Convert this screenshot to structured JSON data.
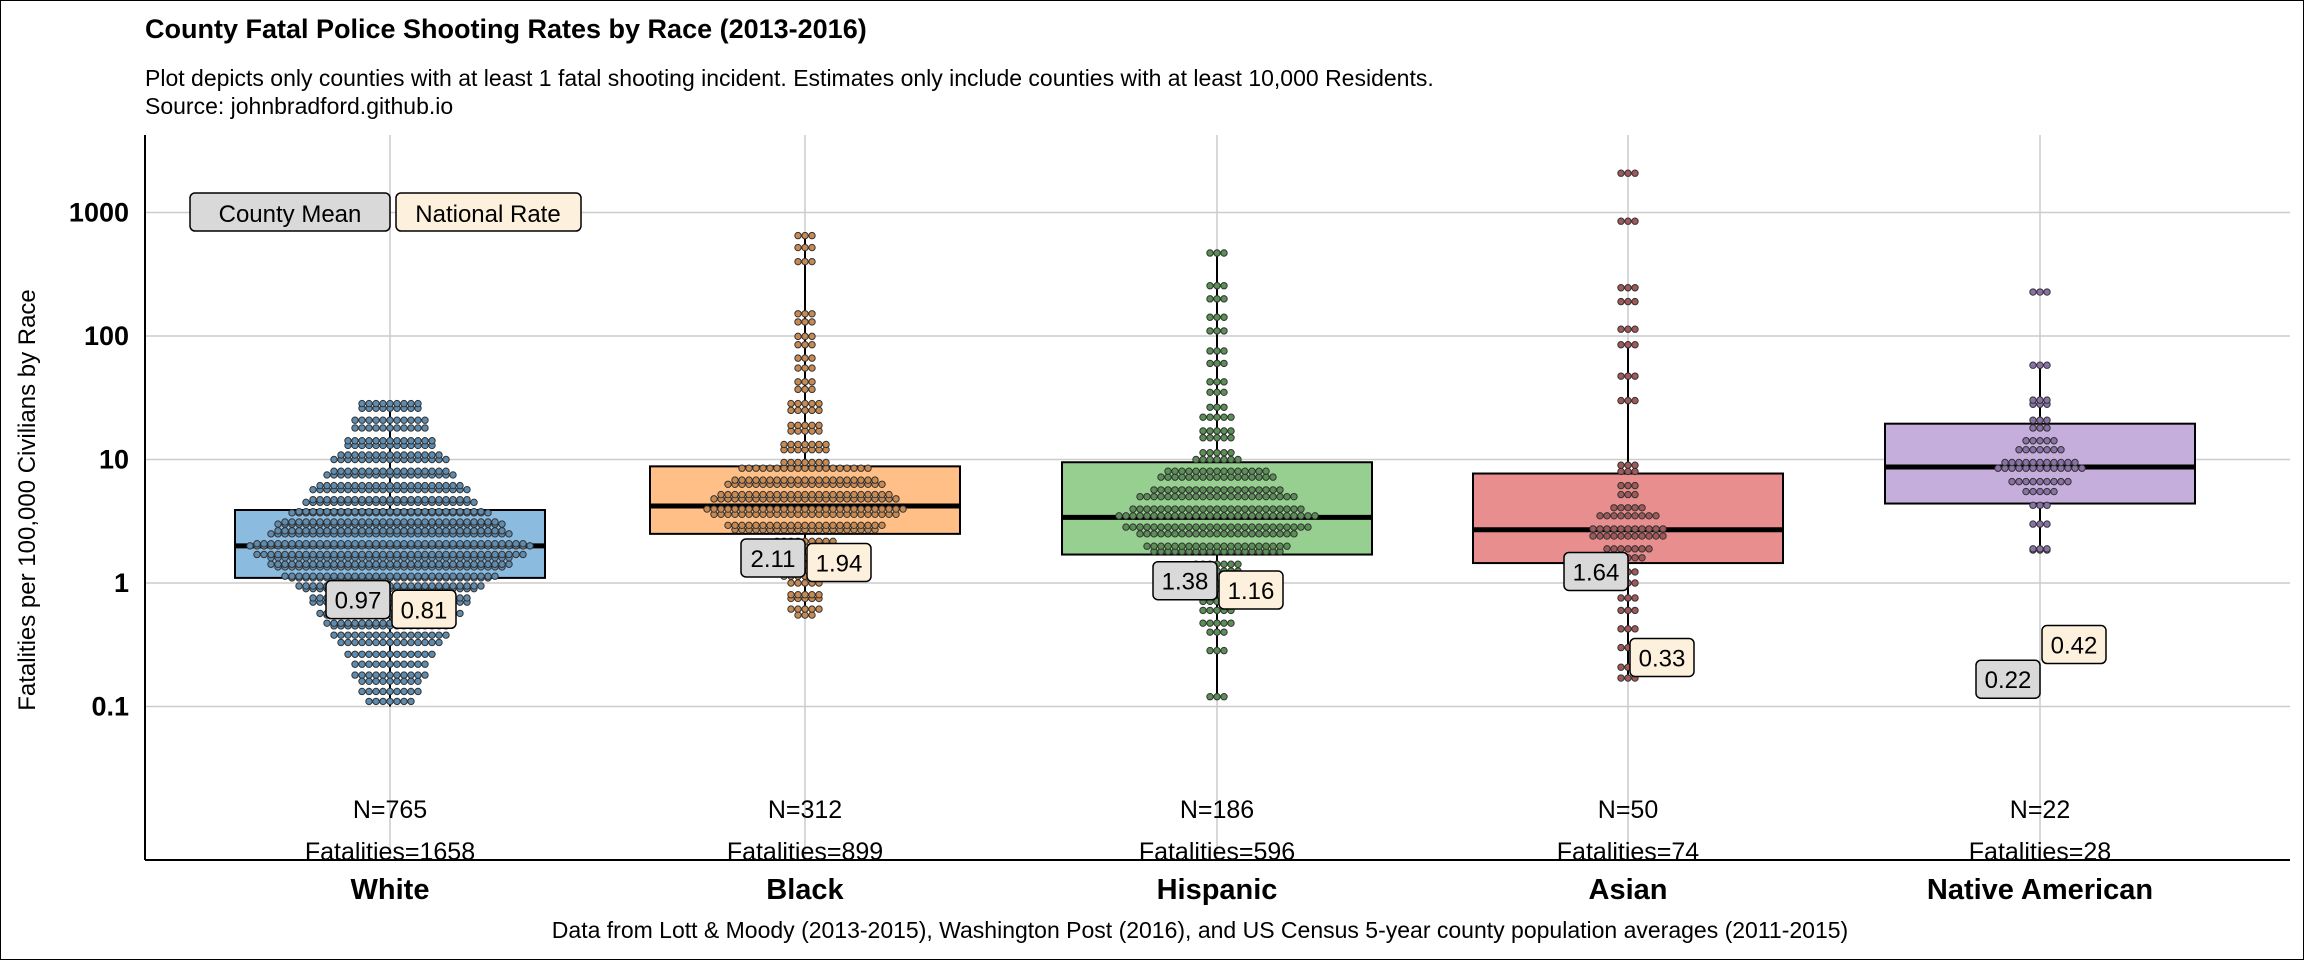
{
  "chart_data": {
    "type": "box",
    "title": "County Fatal Police Shooting Rates by Race (2013-2016)",
    "subtitle": "Plot depicts only counties with at least 1 fatal shooting incident.  Estimates only include counties with at least 10,000 Residents.",
    "source": "Source: johnbradford.github.io",
    "caption": "Data from Lott & Moody (2013-2015), Washington Post (2016), and US Census 5-year county population averages (2011-2015)",
    "ylabel": "Fatalities per 100,000 Civilians by Race",
    "yscale": "log",
    "ylim": [
      0.01,
      4000
    ],
    "y_ticks": [
      0.1,
      1,
      10,
      100,
      1000
    ],
    "y_tick_labels": [
      "0.1",
      "1",
      "10",
      "100",
      "1000"
    ],
    "grid": true,
    "legend": {
      "position": "top-left",
      "items": [
        {
          "label": "County  Mean",
          "color": "#d9d9d9"
        },
        {
          "label": "National Rate",
          "color": "#fdf0dc"
        }
      ]
    },
    "categories": [
      "White",
      "Black",
      "Hispanic",
      "Asian",
      "Native American"
    ],
    "groups": [
      {
        "name": "White",
        "color": "#8cbbe0",
        "dot_color": "#5e8cb0",
        "q1": 1.1,
        "median": 2.0,
        "q3": 3.9,
        "whisker_low": 0.1,
        "whisker_high": 30,
        "county_mean": "0.97",
        "national_rate": "0.81",
        "n_label": "N=765",
        "fatal_label": "Fatalities=1658",
        "points": [
          0.11,
          0.14,
          0.16,
          0.19,
          0.22,
          0.28,
          0.33,
          0.4,
          0.45,
          0.5,
          0.55,
          0.6,
          0.7,
          0.8,
          0.9,
          1,
          1.1,
          1.2,
          1.35,
          1.5,
          1.6,
          1.8,
          2,
          2.2,
          2.5,
          2.8,
          3,
          3.3,
          3.7,
          4,
          4.5,
          5,
          5.7,
          6.5,
          7.5,
          8.5,
          10,
          11.5,
          13,
          15,
          18,
          22,
          26,
          30
        ]
      },
      {
        "name": "Black",
        "color": "#ffbf86",
        "dot_color": "#c98a52",
        "q1": 2.5,
        "median": 4.2,
        "q3": 8.8,
        "whisker_low": 0.55,
        "whisker_high": 650,
        "county_mean": "2.11",
        "national_rate": "1.94",
        "n_label": "N=312",
        "fatal_label": "Fatalities=899",
        "points": [
          0.55,
          0.65,
          0.75,
          0.85,
          1,
          1.2,
          1.4,
          1.7,
          2,
          2.3,
          2.7,
          3.1,
          3.6,
          4.2,
          4.8,
          5.5,
          6.3,
          7.2,
          8.5,
          10,
          12,
          14,
          17,
          20,
          25,
          30,
          37,
          45,
          55,
          70,
          85,
          105,
          130,
          160,
          400,
          550,
          650
        ]
      },
      {
        "name": "Hispanic",
        "color": "#97cf91",
        "dot_color": "#5a8f55",
        "q1": 1.7,
        "median": 3.4,
        "q3": 9.5,
        "whisker_low": 0.12,
        "whisker_high": 470,
        "county_mean": "1.38",
        "national_rate": "1.16",
        "n_label": "N=186",
        "fatal_label": "Fatalities=596",
        "points": [
          0.12,
          0.3,
          0.4,
          0.5,
          0.6,
          0.75,
          0.9,
          1.05,
          1.25,
          1.5,
          1.8,
          2.1,
          2.5,
          3,
          3.5,
          4.2,
          5,
          6,
          7.2,
          8.5,
          10,
          12,
          15,
          18,
          22,
          28,
          35,
          45,
          60,
          80,
          110,
          150,
          200,
          270,
          470
        ]
      },
      {
        "name": "Asian",
        "color": "#e88e8e",
        "dot_color": "#a05858",
        "q1": 1.45,
        "median": 2.7,
        "q3": 7.7,
        "whisker_low": 0.17,
        "whisker_high": 85,
        "county_mean": "1.64",
        "national_rate": "0.33",
        "n_label": "N=50",
        "fatal_label": "Fatalities=74",
        "points": [
          0.17,
          0.22,
          0.3,
          0.45,
          0.6,
          0.8,
          1,
          1.3,
          1.6,
          2,
          2.4,
          2.9,
          3.5,
          4.3,
          5.2,
          6.5,
          8,
          9.5,
          30,
          50,
          85,
          120,
          190,
          260,
          850,
          2200
        ]
      },
      {
        "name": "Native American",
        "color": "#c6aedc",
        "dot_color": "#8a72a8",
        "q1": 4.4,
        "median": 8.7,
        "q3": 19.5,
        "whisker_low": 1.85,
        "whisker_high": 58,
        "county_mean": "0.22",
        "national_rate": "0.42",
        "n_label": "N=22",
        "fatal_label": "Fatalities=28",
        "points": [
          1.85,
          2,
          3,
          4.5,
          5.5,
          7,
          8.5,
          10,
          12,
          15,
          18,
          22,
          28,
          32,
          58,
          240
        ]
      }
    ]
  }
}
